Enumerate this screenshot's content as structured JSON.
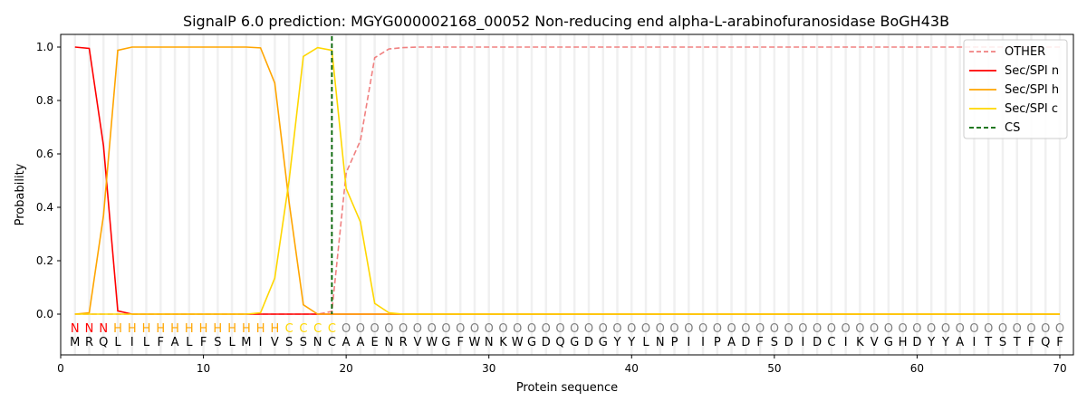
{
  "chart_data": {
    "type": "line",
    "title": "SignalP 6.0 prediction: MGYG000002168_00052 Non-reducing end alpha-L-arabinofuranosidase BoGH43B",
    "xlabel": "Protein sequence",
    "ylabel": "Probability",
    "xlim": [
      0,
      71
    ],
    "ylim": [
      -0.15,
      1.05
    ],
    "xticks": [
      0,
      10,
      20,
      30,
      40,
      50,
      60,
      70
    ],
    "yticks": [
      0.0,
      0.2,
      0.4,
      0.6,
      0.8,
      1.0
    ],
    "ytick_labels": [
      "0.0",
      "0.2",
      "0.4",
      "0.6",
      "0.8",
      "1.0"
    ],
    "grid": "vertical per residue",
    "legend_placement": "top-right",
    "sequence": [
      "M",
      "R",
      "Q",
      "L",
      "I",
      "L",
      "F",
      "A",
      "L",
      "F",
      "S",
      "L",
      "M",
      "I",
      "V",
      "S",
      "S",
      "N",
      "C",
      "A",
      "A",
      "E",
      "N",
      "R",
      "V",
      "W",
      "G",
      "F",
      "W",
      "N",
      "K",
      "W",
      "G",
      "D",
      "Q",
      "G",
      "D",
      "G",
      "Y",
      "Y",
      "L",
      "N",
      "P",
      "I",
      "I",
      "P",
      "A",
      "D",
      "F",
      "S",
      "D",
      "I",
      "D",
      "C",
      "I",
      "K",
      "V",
      "G",
      "H",
      "D",
      "Y",
      "Y",
      "A",
      "I",
      "T",
      "S",
      "T",
      "F",
      "Q",
      "F"
    ],
    "region_labels": [
      "N",
      "N",
      "N",
      "H",
      "H",
      "H",
      "H",
      "H",
      "H",
      "H",
      "H",
      "H",
      "H",
      "H",
      "H",
      "C",
      "C",
      "C",
      "C",
      "O",
      "O",
      "O",
      "O",
      "O",
      "O",
      "O",
      "O",
      "O",
      "O",
      "O",
      "O",
      "O",
      "O",
      "O",
      "O",
      "O",
      "O",
      "O",
      "O",
      "O",
      "O",
      "O",
      "O",
      "O",
      "O",
      "O",
      "O",
      "O",
      "O",
      "O",
      "O",
      "O",
      "O",
      "O",
      "O",
      "O",
      "O",
      "O",
      "O",
      "O",
      "O",
      "O",
      "O",
      "O",
      "O",
      "O",
      "O",
      "O",
      "O",
      "O"
    ],
    "region_colors": {
      "N": "#ff0000",
      "H": "#ffa500",
      "C": "#ffd700",
      "O": "#808080"
    },
    "cleavage_site": 19,
    "series": [
      {
        "name": "OTHER",
        "color": "#f08080",
        "dash": true,
        "values": [
          0,
          0,
          0,
          0,
          0,
          0,
          0,
          0,
          0,
          0,
          0,
          0,
          0,
          0,
          0,
          0,
          0,
          0,
          0.01,
          0.53,
          0.65,
          0.96,
          0.993,
          0.998,
          1,
          1,
          1,
          1,
          1,
          1,
          1,
          1,
          1,
          1,
          1,
          1,
          1,
          1,
          1,
          1,
          1,
          1,
          1,
          1,
          1,
          1,
          1,
          1,
          1,
          1,
          1,
          1,
          1,
          1,
          1,
          1,
          1,
          1,
          1,
          1,
          1,
          1,
          1,
          1,
          1,
          1,
          1,
          1,
          1,
          1
        ]
      },
      {
        "name": "Sec/SPI n",
        "color": "#ff0000",
        "dash": false,
        "values": [
          1.0,
          0.995,
          0.63,
          0.012,
          0,
          0,
          0,
          0,
          0,
          0,
          0,
          0,
          0,
          0,
          0,
          0,
          0,
          0,
          0,
          0,
          0,
          0,
          0,
          0,
          0,
          0,
          0,
          0,
          0,
          0,
          0,
          0,
          0,
          0,
          0,
          0,
          0,
          0,
          0,
          0,
          0,
          0,
          0,
          0,
          0,
          0,
          0,
          0,
          0,
          0,
          0,
          0,
          0,
          0,
          0,
          0,
          0,
          0,
          0,
          0,
          0,
          0,
          0,
          0,
          0,
          0,
          0,
          0,
          0,
          0
        ]
      },
      {
        "name": "Sec/SPI h",
        "color": "#ffa500",
        "dash": false,
        "values": [
          0,
          0.005,
          0.37,
          0.988,
          1,
          1,
          1,
          1,
          1,
          1,
          1,
          1,
          1,
          0.997,
          0.865,
          0.42,
          0.035,
          0,
          0,
          0,
          0,
          0,
          0,
          0,
          0,
          0,
          0,
          0,
          0,
          0,
          0,
          0,
          0,
          0,
          0,
          0,
          0,
          0,
          0,
          0,
          0,
          0,
          0,
          0,
          0,
          0,
          0,
          0,
          0,
          0,
          0,
          0,
          0,
          0,
          0,
          0,
          0,
          0,
          0,
          0,
          0,
          0,
          0,
          0,
          0,
          0,
          0,
          0,
          0,
          0
        ]
      },
      {
        "name": "Sec/SPI c",
        "color": "#ffd700",
        "dash": false,
        "values": [
          0,
          0,
          0,
          0,
          0,
          0,
          0,
          0,
          0,
          0,
          0,
          0,
          0,
          0.005,
          0.135,
          0.5,
          0.965,
          0.998,
          0.988,
          0.47,
          0.345,
          0.04,
          0.005,
          0,
          0,
          0,
          0,
          0,
          0,
          0,
          0,
          0,
          0,
          0,
          0,
          0,
          0,
          0,
          0,
          0,
          0,
          0,
          0,
          0,
          0,
          0,
          0,
          0,
          0,
          0,
          0,
          0,
          0,
          0,
          0,
          0,
          0,
          0,
          0,
          0,
          0,
          0,
          0,
          0,
          0,
          0,
          0,
          0,
          0,
          0
        ]
      }
    ],
    "legend": [
      "OTHER",
      "Sec/SPI n",
      "Sec/SPI h",
      "Sec/SPI c",
      "CS"
    ],
    "cs_color": "#006400"
  }
}
